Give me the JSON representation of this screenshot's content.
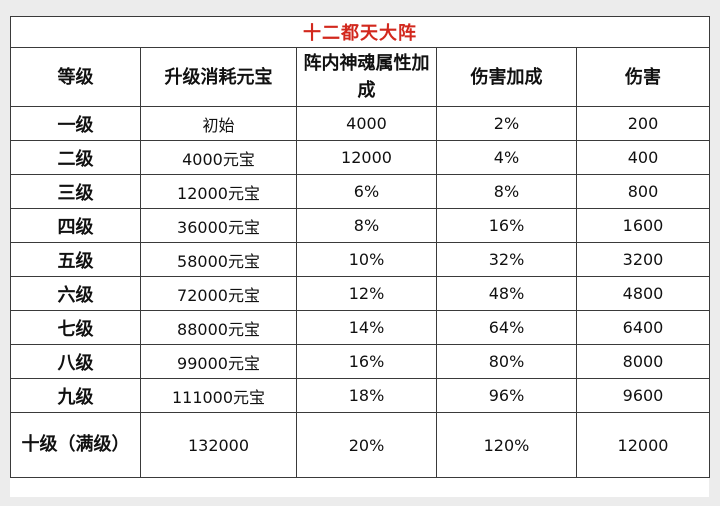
{
  "table": {
    "title": "十二都天大阵",
    "headers": [
      "等级",
      "升级消耗元宝",
      "阵内神魂属性加成",
      "伤害加成",
      "伤害"
    ],
    "rows": [
      {
        "level": "一级",
        "cost": "初始",
        "soul_bonus": "4000",
        "damage_bonus": "2%",
        "damage": "200"
      },
      {
        "level": "二级",
        "cost": "4000元宝",
        "soul_bonus": "12000",
        "damage_bonus": "4%",
        "damage": "400"
      },
      {
        "level": "三级",
        "cost": "12000元宝",
        "soul_bonus": "6%",
        "damage_bonus": "8%",
        "damage": "800"
      },
      {
        "level": "四级",
        "cost": "36000元宝",
        "soul_bonus": "8%",
        "damage_bonus": "16%",
        "damage": "1600"
      },
      {
        "level": "五级",
        "cost": "58000元宝",
        "soul_bonus": "10%",
        "damage_bonus": "32%",
        "damage": "3200"
      },
      {
        "level": "六级",
        "cost": "72000元宝",
        "soul_bonus": "12%",
        "damage_bonus": "48%",
        "damage": "4800"
      },
      {
        "level": "七级",
        "cost": "88000元宝",
        "soul_bonus": "14%",
        "damage_bonus": "64%",
        "damage": "6400"
      },
      {
        "level": "八级",
        "cost": "99000元宝",
        "soul_bonus": "16%",
        "damage_bonus": "80%",
        "damage": "8000"
      },
      {
        "level": "九级",
        "cost": "111000元宝",
        "soul_bonus": "18%",
        "damage_bonus": "96%",
        "damage": "9600"
      },
      {
        "level": "十级（满级）",
        "cost": "132000",
        "soul_bonus": "20%",
        "damage_bonus": "120%",
        "damage": "12000"
      }
    ]
  },
  "colors": {
    "title": "#d2281d",
    "border": "#3a3a3a",
    "text": "#111111",
    "background": "#ececec"
  }
}
